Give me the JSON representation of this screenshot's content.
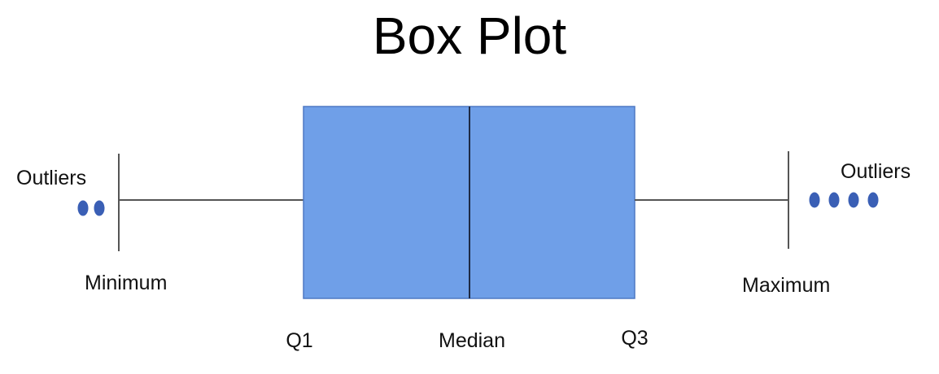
{
  "title": "Box Plot",
  "labels": {
    "minimum": "Minimum",
    "maximum": "Maximum",
    "q1": "Q1",
    "median": "Median",
    "q3": "Q3",
    "outliers_left": "Outliers",
    "outliers_right": "Outliers"
  },
  "colors": {
    "box_fill": "#6f9fe8",
    "outlier_dot": "#3a5fb5"
  },
  "outliers": {
    "left_count": 2,
    "right_count": 4
  }
}
